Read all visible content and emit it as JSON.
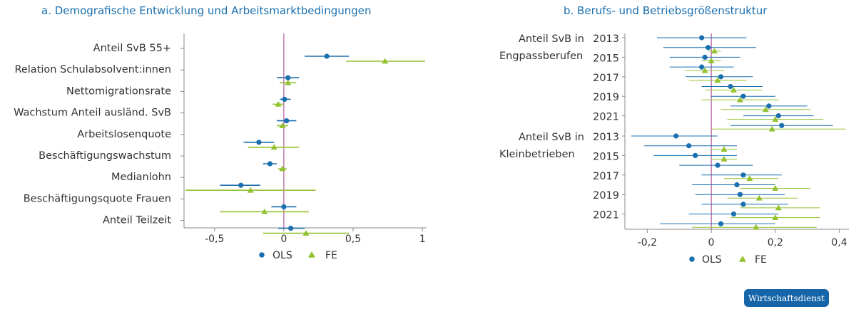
{
  "colors": {
    "ols": "#1a6fae",
    "fe": "#93c12f",
    "zero_line": "#b05aa0",
    "axis": "#888888",
    "title": "#1a6fae",
    "badge_bg": "#1565a8"
  },
  "badge": "Wirtschaftsdienst",
  "chart_data": [
    {
      "type": "scatter",
      "title": "a. Demografische Entwicklung und Arbeitsmarktbedingungen",
      "orientation": "horizontal coefficient plot with confidence intervals",
      "xlim": [
        -0.72,
        1.03
      ],
      "ticks": [
        -0.5,
        0,
        0.5,
        1
      ],
      "tick_labels": [
        "-0,5",
        "0",
        "0,5",
        "1"
      ],
      "legend": {
        "position": "bottom",
        "entries": [
          "OLS",
          "FE"
        ]
      },
      "categories": [
        "Anteil SvB 55+",
        "Relation Schulabsolvent:innen",
        "Nettomigrationsrate",
        "Wachstum Anteil ausländ. SvB",
        "Arbeitslosenquote",
        "Beschäftigungswachstum",
        "Medianlohn",
        "Beschäftigungsquote Frauen",
        "Anteil Teilzeit"
      ],
      "series": [
        {
          "name": "OLS",
          "marker": "circle",
          "values": [
            0.31,
            0.03,
            0.005,
            0.02,
            -0.18,
            -0.1,
            -0.31,
            0.0,
            0.05
          ],
          "ci": [
            [
              0.15,
              0.47
            ],
            [
              -0.05,
              0.11
            ],
            [
              -0.03,
              0.05
            ],
            [
              -0.05,
              0.09
            ],
            [
              -0.29,
              -0.07
            ],
            [
              -0.15,
              -0.05
            ],
            [
              -0.46,
              -0.17
            ],
            [
              -0.09,
              0.09
            ],
            [
              -0.04,
              0.15
            ]
          ]
        },
        {
          "name": "FE",
          "marker": "triangle",
          "values": [
            0.73,
            0.03,
            -0.04,
            -0.01,
            -0.07,
            -0.01,
            -0.24,
            -0.14,
            0.16
          ],
          "ci": [
            [
              0.45,
              1.02
            ],
            [
              -0.03,
              0.09
            ],
            [
              -0.08,
              0.0
            ],
            [
              -0.05,
              0.03
            ],
            [
              -0.26,
              0.11
            ],
            [
              -0.04,
              0.02
            ],
            [
              -0.71,
              0.23
            ],
            [
              -0.46,
              0.18
            ],
            [
              -0.15,
              0.47
            ]
          ]
        }
      ]
    },
    {
      "type": "scatter",
      "title": "b. Berufs- und Betriebsgrößenstruktur",
      "orientation": "horizontal coefficient plot with confidence intervals",
      "xlim": [
        -0.27,
        0.43
      ],
      "ticks": [
        -0.2,
        0,
        0.2,
        0.4
      ],
      "tick_labels": [
        "-0,2",
        "0",
        "0,2",
        "0,4"
      ],
      "legend": {
        "position": "bottom",
        "entries": [
          "OLS",
          "FE"
        ]
      },
      "groups": [
        {
          "label": "Anteil SvB in Engpassberufen",
          "years": [
            "2013",
            "2014",
            "2015",
            "2016",
            "2017",
            "2018",
            "2019",
            "2020",
            "2021",
            "2022"
          ],
          "year_labels": [
            "2013",
            "2015",
            "2017",
            "2019",
            "2021"
          ],
          "ols": [
            -0.03,
            -0.01,
            -0.02,
            -0.03,
            0.03,
            0.06,
            0.1,
            0.18,
            0.21,
            0.22
          ],
          "ols_ci": [
            [
              -0.17,
              0.11
            ],
            [
              -0.15,
              0.14
            ],
            [
              -0.13,
              0.09
            ],
            [
              -0.13,
              0.07
            ],
            [
              -0.08,
              0.13
            ],
            [
              -0.03,
              0.16
            ],
            [
              0.0,
              0.2
            ],
            [
              0.06,
              0.3
            ],
            [
              0.1,
              0.32
            ],
            [
              0.06,
              0.38
            ]
          ],
          "fe": [
            null,
            0.01,
            0.0,
            -0.02,
            0.02,
            0.07,
            0.09,
            0.17,
            0.2,
            0.19
          ],
          "fe_ci": [
            null,
            [
              -0.01,
              0.03
            ],
            [
              -0.03,
              0.03
            ],
            [
              -0.08,
              0.04
            ],
            [
              -0.07,
              0.11
            ],
            [
              -0.02,
              0.16
            ],
            [
              -0.03,
              0.21
            ],
            [
              0.03,
              0.31
            ],
            [
              0.05,
              0.35
            ],
            [
              0.0,
              0.42
            ]
          ]
        },
        {
          "label": "Anteil SvB in Kleinbetrieben",
          "years": [
            "2013",
            "2014",
            "2015",
            "2016",
            "2017",
            "2018",
            "2019",
            "2020",
            "2021",
            "2022"
          ],
          "year_labels": [
            "2013",
            "2015",
            "2017",
            "2019",
            "2021"
          ],
          "ols": [
            -0.11,
            -0.07,
            -0.05,
            0.02,
            0.1,
            0.08,
            0.09,
            0.1,
            0.07,
            0.03
          ],
          "ols_ci": [
            [
              -0.25,
              0.02
            ],
            [
              -0.21,
              0.08
            ],
            [
              -0.18,
              0.08
            ],
            [
              -0.1,
              0.13
            ],
            [
              -0.03,
              0.22
            ],
            [
              -0.06,
              0.2
            ],
            [
              -0.05,
              0.23
            ],
            [
              -0.03,
              0.24
            ],
            [
              -0.07,
              0.21
            ],
            [
              -0.16,
              0.2
            ]
          ],
          "fe": [
            null,
            0.04,
            0.04,
            null,
            0.12,
            0.2,
            0.15,
            0.21,
            0.2,
            0.14
          ],
          "fe_ci": [
            null,
            [
              0.0,
              0.08
            ],
            [
              0.0,
              0.08
            ],
            null,
            [
              0.04,
              0.21
            ],
            [
              0.09,
              0.31
            ],
            [
              0.05,
              0.27
            ],
            [
              0.09,
              0.34
            ],
            [
              0.06,
              0.34
            ],
            [
              -0.06,
              0.33
            ]
          ]
        }
      ]
    }
  ]
}
